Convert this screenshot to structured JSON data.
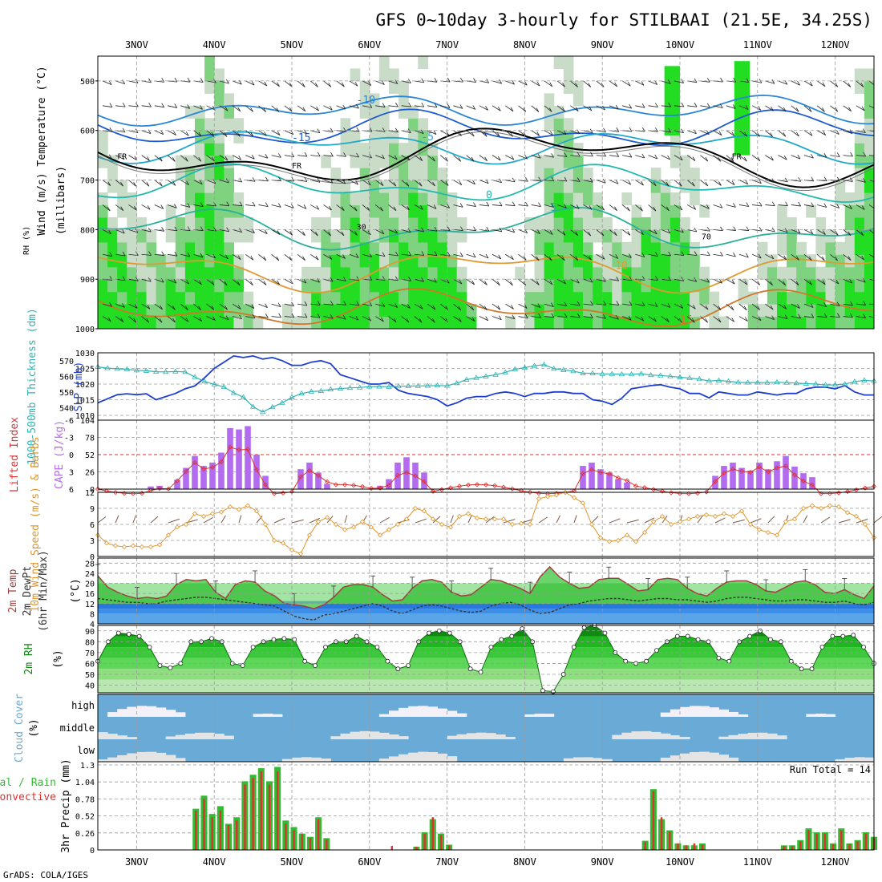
{
  "title": "GFS 0~10day 3-hourly for STILBAAI (21.5E, 34.25S)",
  "credit": "GrADS: COLA/IGES",
  "colors": {
    "rh_light": "#c8dcc8",
    "rh_mid": "#7fd27f",
    "rh_bright": "#22dd22",
    "rh_dark": "#119911",
    "slp_line": "#1f3fcf",
    "thickness_line": "#33b3b3",
    "lifted_index": "#e03030",
    "cape_bar": "#b36bef",
    "wind_speed": "#e0962a",
    "barb": "#7a5a4a",
    "temp_line": "#a04040",
    "dewpoint": "#333333",
    "cloud_blue": "#6aaad6",
    "cloud_white": "#e4e4e4",
    "precip_total": "#33bb33",
    "precip_conv": "#e03030"
  },
  "chart_data": {
    "type": "meteogram",
    "x_axis": {
      "dates": [
        "3NOV",
        "4NOV",
        "5NOV",
        "6NOV",
        "7NOV",
        "8NOV",
        "9NOV",
        "10NOV",
        "11NOV",
        "12NOV"
      ],
      "start_hour_offset": -12,
      "end_hour_offset": 228
    },
    "panels": [
      {
        "id": "upper_air",
        "labels": {
          "rh": "RH (%)",
          "temperature": "Temperature (°C)",
          "wind": "Wind (m/s)",
          "pressure": "(millibars)"
        },
        "y_ticks": [
          500,
          600,
          700,
          800,
          900,
          1000
        ],
        "ylim": [
          450,
          1000
        ],
        "freezing_label": "FR",
        "temp_contour_labels": [
          "-15",
          "-10",
          "-5",
          "0",
          "5",
          "10",
          "15"
        ],
        "rh_contour_labels": [
          "30",
          "70"
        ]
      },
      {
        "id": "slp_thickness",
        "labels": {
          "slp": "SLP (mb)",
          "thickness": "1000-500mb Thickness (dm)"
        },
        "slp_ticks": [
          1010,
          1015,
          1020,
          1025,
          1030
        ],
        "thickness_ticks": [
          540,
          550,
          560,
          570
        ],
        "slp": [
          1014.0,
          1015.3,
          1016.6,
          1016.9,
          1016.6,
          1016.9,
          1015.0,
          1016.0,
          1017.0,
          1018.5,
          1019.4,
          1022.0,
          1025.0,
          1027.0,
          1029.0,
          1028.5,
          1029.0,
          1028.0,
          1028.5,
          1027.5,
          1026.0,
          1026.0,
          1027.0,
          1027.5,
          1026.5,
          1023.0,
          1022.0,
          1021.0,
          1020.0,
          1020.0,
          1020.5,
          1018.0,
          1017.0,
          1016.5,
          1016.0,
          1015.0,
          1013.0,
          1014.0,
          1015.5,
          1016.0,
          1016.0,
          1017.0,
          1017.5,
          1017.0,
          1016.0,
          1017.0,
          1017.0,
          1017.5,
          1017.5,
          1017.0,
          1017.0,
          1015.0,
          1014.5,
          1013.5,
          1015.5,
          1018.5,
          1019.0,
          1019.5,
          1019.8,
          1019.0,
          1018.5,
          1017.0,
          1017.0,
          1015.6,
          1017.5,
          1017.0,
          1016.5,
          1016.5,
          1017.5,
          1017.0,
          1016.5,
          1017.0,
          1017.0,
          1018.5,
          1019.0,
          1019.0,
          1018.5,
          1019.5,
          1017.5,
          1016.5,
          1016.5
        ],
        "thickness": [
          566.0,
          565.2,
          564.8,
          564.5,
          563.8,
          563.5,
          562.9,
          562.8,
          563.0,
          562.8,
          559.5,
          556.7,
          554.8,
          553.2,
          549.4,
          546.6,
          540.5,
          537.1,
          540.3,
          543.0,
          546.5,
          549.0,
          550.2,
          550.6,
          551.6,
          552.1,
          552.6,
          552.8,
          553.4,
          553.4,
          553.3,
          553.6,
          553.7,
          553.8,
          553.9,
          554.1,
          553.9,
          555.6,
          557.8,
          559.0,
          559.9,
          561.0,
          562.5,
          564.5,
          565.5,
          566.7,
          567.4,
          564.9,
          564.0,
          563.3,
          561.9,
          561.9,
          561.5,
          561.5,
          561.3,
          561.3,
          561.6,
          560.8,
          560.5,
          560.0,
          559.4,
          558.8,
          558.2,
          557.0,
          557.3,
          556.8,
          556.1,
          556.0,
          556.0,
          555.9,
          556.2,
          555.9,
          555.6,
          555.3,
          555.0,
          554.4,
          554.5,
          555.0,
          556.5,
          557.4,
          557.0
        ]
      },
      {
        "id": "cape_li",
        "labels": {
          "li": "Lifted Index",
          "cape": "CAPE (J/kg)"
        },
        "li_ticks": [
          6,
          3,
          0,
          -3,
          -6
        ],
        "cape_ticks": [
          0,
          26,
          52,
          78,
          104
        ],
        "cape": [
          0,
          0,
          0,
          0,
          0,
          0,
          4,
          5,
          0,
          14,
          32,
          50,
          35,
          40,
          55,
          92,
          90,
          95,
          52,
          20,
          0,
          0,
          0,
          30,
          40,
          25,
          8,
          0,
          0,
          0,
          0,
          0,
          5,
          15,
          40,
          48,
          40,
          25,
          0,
          0,
          0,
          0,
          0,
          0,
          0,
          0,
          0,
          0,
          0,
          0,
          0,
          0,
          0,
          0,
          0,
          35,
          40,
          30,
          25,
          15,
          10,
          0,
          0,
          0,
          0,
          0,
          0,
          0,
          0,
          0,
          20,
          35,
          40,
          32,
          28,
          40,
          30,
          42,
          50,
          34,
          24,
          18,
          0,
          0,
          0,
          0,
          0,
          0,
          0
        ]
      },
      {
        "id": "wind10m",
        "labels": {
          "speed": "10m Wind Speed (m/s) & Barbs"
        },
        "y_ticks": [
          0,
          3,
          6,
          9,
          12
        ],
        "ylim": [
          0,
          12
        ],
        "speed": [
          4.0,
          2.5,
          2.0,
          1.8,
          2.0,
          1.8,
          1.8,
          2.2,
          4.0,
          5.5,
          6.0,
          8.0,
          7.5,
          8.0,
          8.3,
          9.3,
          8.8,
          9.5,
          8.5,
          6.0,
          3.0,
          2.5,
          1.2,
          0.5,
          4.0,
          6.5,
          7.3,
          6.0,
          5.0,
          5.5,
          6.5,
          5.5,
          4.0,
          5.0,
          6.0,
          7.0,
          9.0,
          8.5,
          7.0,
          6.0,
          5.5,
          7.5,
          8.0,
          7.2,
          7.0,
          7.0,
          7.0,
          6.0,
          6.2,
          6.0,
          10.8,
          11.2,
          11.5,
          12.0,
          11.0,
          10.0,
          6.0,
          3.5,
          2.8,
          3.0,
          4.0,
          2.8,
          4.5,
          6.5,
          7.5,
          6.0,
          6.5,
          7.0,
          7.5,
          7.8,
          7.5,
          8.0,
          7.5,
          8.5,
          6.0,
          5.0,
          4.5,
          4.0,
          6.5,
          7.0,
          9.0,
          9.5,
          9.0,
          9.5,
          9.3,
          8.2,
          7.5,
          6.0,
          3.5
        ]
      },
      {
        "id": "temp2m",
        "labels": {
          "temp": "2m Temp",
          "dewpt": "2m DewPt",
          "minmax": "(6hr Min/Max)",
          "unit": "(°C)"
        },
        "y_ticks": [
          4,
          8,
          12,
          16,
          20,
          24,
          28
        ],
        "ylim": [
          4,
          30
        ],
        "temperature": [
          23.0,
          18.5,
          16.5,
          15.0,
          14.0,
          14.5,
          14.0,
          15.0,
          19.5,
          21.5,
          21.0,
          21.5,
          16.5,
          14.0,
          19.5,
          21.0,
          20.5,
          17.0,
          15.0,
          12.0,
          11.5,
          11.0,
          10.0,
          11.5,
          14.5,
          18.5,
          19.5,
          19.5,
          18.5,
          15.5,
          13.0,
          13.5,
          18.0,
          21.0,
          21.5,
          20.5,
          16.5,
          15.0,
          15.5,
          18.5,
          21.5,
          21.0,
          19.5,
          18.0,
          16.0,
          22.5,
          26.5,
          22.5,
          20.0,
          18.0,
          18.5,
          21.5,
          22.0,
          22.0,
          19.5,
          17.0,
          17.5,
          21.5,
          22.0,
          21.5,
          18.0,
          16.0,
          15.0,
          18.0,
          20.5,
          21.0,
          21.0,
          19.5,
          17.0,
          16.5,
          18.5,
          20.5,
          21.0,
          19.5,
          16.5,
          16.0,
          17.5,
          15.5,
          14.0,
          19.0
        ],
        "dewpoint": [
          14.0,
          13.5,
          13.0,
          12.5,
          12.5,
          12.0,
          12.0,
          13.0,
          13.5,
          14.0,
          14.5,
          14.5,
          14.0,
          13.5,
          13.0,
          12.5,
          12.0,
          11.5,
          11.0,
          9.0,
          7.0,
          6.0,
          5.5,
          7.5,
          8.0,
          9.0,
          10.0,
          11.0,
          12.0,
          11.0,
          9.0,
          8.0,
          9.5,
          11.0,
          11.5,
          11.0,
          10.0,
          9.0,
          8.5,
          9.0,
          11.0,
          12.0,
          12.5,
          11.5,
          9.5,
          8.0,
          8.5,
          10.0,
          11.5,
          12.0,
          13.0,
          13.5,
          14.0,
          14.0,
          13.5,
          13.0,
          13.5,
          14.0,
          14.0,
          13.5,
          13.5,
          13.0,
          12.5,
          13.0,
          14.0,
          14.5,
          14.5,
          14.0,
          13.5,
          13.0,
          13.0,
          13.5,
          13.5,
          13.0,
          12.5,
          12.5,
          13.0,
          12.0,
          11.5,
          12.5
        ]
      },
      {
        "id": "rh2m",
        "labels": {
          "rh": "2m RH",
          "unit": "(%)"
        },
        "y_ticks": [
          40,
          50,
          60,
          70,
          80,
          90
        ],
        "ylim": [
          33,
          95
        ],
        "rh": [
          62,
          80,
          88,
          87,
          85,
          75,
          58,
          56,
          60,
          80,
          80,
          83,
          80,
          60,
          58,
          75,
          80,
          82,
          83,
          82,
          62,
          58,
          75,
          80,
          80,
          85,
          80,
          75,
          62,
          55,
          58,
          80,
          88,
          90,
          88,
          80,
          55,
          52,
          75,
          82,
          85,
          92,
          80,
          35,
          34,
          50,
          75,
          93,
          95,
          88,
          70,
          62,
          60,
          62,
          72,
          80,
          85,
          85,
          82,
          80,
          65,
          62,
          80,
          85,
          90,
          82,
          80,
          62,
          55,
          55,
          75,
          85,
          85,
          86,
          75,
          60
        ]
      },
      {
        "id": "cloud",
        "labels": {
          "cloud": "Cloud Cover",
          "unit": "(%)",
          "high": "high",
          "middle": "middle",
          "low": "low"
        }
      },
      {
        "id": "precip",
        "labels": {
          "precip": "3hr Precip (mm)",
          "total": "Total / Rain",
          "conv": "Convective",
          "run_total": "Run Total = 14"
        },
        "y_ticks": [
          0,
          0.26,
          0.52,
          0.78,
          1.04,
          1.3
        ],
        "y_tick_labels": [
          "0",
          "0.26",
          "0.52",
          "0.78",
          "1.04",
          "1.3"
        ],
        "ylim": [
          0,
          1.3
        ],
        "total": [
          0,
          0,
          0,
          0,
          0,
          0,
          0,
          0,
          0,
          0,
          0,
          0,
          0.63,
          0.83,
          0.55,
          0.67,
          0.4,
          0.5,
          1.05,
          1.15,
          1.25,
          1.05,
          1.27,
          0.45,
          0.35,
          0.25,
          0.2,
          0.5,
          0.18,
          0,
          0,
          0,
          0,
          0,
          0,
          0,
          0,
          0,
          0,
          0.05,
          0.27,
          0.47,
          0.25,
          0.08,
          0,
          0,
          0,
          0,
          0,
          0,
          0,
          0,
          0,
          0,
          0,
          0,
          0,
          0,
          0,
          0,
          0,
          0,
          0,
          0,
          0,
          0,
          0,
          0.14,
          0.93,
          0.47,
          0.3,
          0.1,
          0.07,
          0.07,
          0.1,
          0,
          0,
          0,
          0,
          0,
          0,
          0,
          0,
          0,
          0.07,
          0.07,
          0.15,
          0.33,
          0.27,
          0.27,
          0.1,
          0.33,
          0.1,
          0.15,
          0.27,
          0.2
        ],
        "convective": [
          0,
          0,
          0,
          0,
          0,
          0,
          0,
          0,
          0,
          0,
          0,
          0,
          0.6,
          0.78,
          0.5,
          0.6,
          0.38,
          0.45,
          1.0,
          1.1,
          1.2,
          1.0,
          1.2,
          0.4,
          0.3,
          0.24,
          0.18,
          0.47,
          0.16,
          0,
          0,
          0,
          0,
          0,
          0,
          0,
          0.06,
          0,
          0,
          0.05,
          0.25,
          0.5,
          0.23,
          0.07,
          0,
          0,
          0,
          0,
          0,
          0,
          0,
          0,
          0,
          0,
          0,
          0,
          0,
          0,
          0,
          0,
          0,
          0,
          0,
          0,
          0,
          0,
          0,
          0.12,
          0.9,
          0.5,
          0.28,
          0.1,
          0.07,
          0.1,
          0.08,
          0,
          0,
          0,
          0,
          0,
          0,
          0,
          0,
          0,
          0.06,
          0.06,
          0.13,
          0.3,
          0.25,
          0.25,
          0.09,
          0.3,
          0.09,
          0.13,
          0.25,
          0.18
        ]
      }
    ]
  }
}
